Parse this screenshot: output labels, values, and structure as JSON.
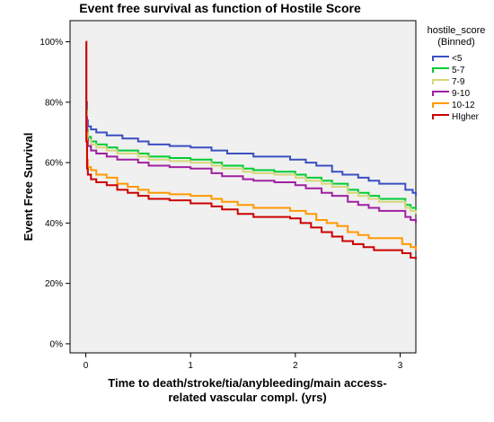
{
  "chart_data": {
    "type": "line",
    "title": "Event free survival as function of Hostile Score",
    "xlabel": [
      "Time to death/stroke/tia/anybleeding/main access-",
      "related vascular compl. (yrs)"
    ],
    "ylabel": "Event Free Survival",
    "xlim": [
      -0.15,
      3.15
    ],
    "ylim": [
      -0.03,
      1.07
    ],
    "xticks": [
      0,
      1,
      2,
      3
    ],
    "xtick_labels": [
      "0",
      "1",
      "2",
      "3"
    ],
    "yticks": [
      0,
      0.2,
      0.4,
      0.6,
      0.8,
      1.0
    ],
    "ytick_labels": [
      "0%",
      "20%",
      "40%",
      "60%",
      "80%",
      "100%"
    ],
    "grid": false,
    "plot_background": "#f0f0f0",
    "legend": {
      "title": [
        "hostile_score",
        "(Binned)"
      ],
      "placement": "outside-right"
    },
    "series": [
      {
        "name": "<5",
        "color": "#3b4fc0",
        "points": [
          [
            0,
            1.0
          ],
          [
            0.005,
            0.8
          ],
          [
            0.012,
            0.74
          ],
          [
            0.02,
            0.72
          ],
          [
            0.05,
            0.71
          ],
          [
            0.1,
            0.7
          ],
          [
            0.2,
            0.69
          ],
          [
            0.35,
            0.68
          ],
          [
            0.5,
            0.67
          ],
          [
            0.6,
            0.66
          ],
          [
            0.8,
            0.655
          ],
          [
            1.0,
            0.65
          ],
          [
            1.2,
            0.64
          ],
          [
            1.35,
            0.63
          ],
          [
            1.5,
            0.63
          ],
          [
            1.6,
            0.62
          ],
          [
            1.8,
            0.62
          ],
          [
            1.95,
            0.61
          ],
          [
            2.1,
            0.6
          ],
          [
            2.2,
            0.59
          ],
          [
            2.35,
            0.57
          ],
          [
            2.45,
            0.56
          ],
          [
            2.6,
            0.55
          ],
          [
            2.7,
            0.54
          ],
          [
            2.8,
            0.53
          ],
          [
            2.98,
            0.53
          ],
          [
            3.05,
            0.51
          ],
          [
            3.12,
            0.5
          ],
          [
            3.15,
            0.49
          ]
        ]
      },
      {
        "name": "5-7",
        "color": "#00cc33",
        "points": [
          [
            0,
            1.0
          ],
          [
            0.005,
            0.78
          ],
          [
            0.012,
            0.71
          ],
          [
            0.02,
            0.685
          ],
          [
            0.05,
            0.67
          ],
          [
            0.1,
            0.66
          ],
          [
            0.2,
            0.65
          ],
          [
            0.3,
            0.64
          ],
          [
            0.5,
            0.63
          ],
          [
            0.6,
            0.62
          ],
          [
            0.8,
            0.615
          ],
          [
            1.0,
            0.61
          ],
          [
            1.2,
            0.6
          ],
          [
            1.3,
            0.59
          ],
          [
            1.5,
            0.58
          ],
          [
            1.6,
            0.575
          ],
          [
            1.8,
            0.57
          ],
          [
            2.0,
            0.56
          ],
          [
            2.1,
            0.55
          ],
          [
            2.25,
            0.54
          ],
          [
            2.35,
            0.53
          ],
          [
            2.5,
            0.51
          ],
          [
            2.6,
            0.5
          ],
          [
            2.7,
            0.49
          ],
          [
            2.8,
            0.48
          ],
          [
            2.98,
            0.48
          ],
          [
            3.05,
            0.46
          ],
          [
            3.1,
            0.45
          ],
          [
            3.15,
            0.44
          ]
        ]
      },
      {
        "name": "7-9",
        "color": "#d6d67a",
        "points": [
          [
            0,
            1.0
          ],
          [
            0.005,
            0.77
          ],
          [
            0.012,
            0.7
          ],
          [
            0.02,
            0.675
          ],
          [
            0.05,
            0.66
          ],
          [
            0.1,
            0.65
          ],
          [
            0.2,
            0.64
          ],
          [
            0.3,
            0.63
          ],
          [
            0.5,
            0.62
          ],
          [
            0.6,
            0.61
          ],
          [
            0.8,
            0.605
          ],
          [
            1.0,
            0.6
          ],
          [
            1.2,
            0.59
          ],
          [
            1.3,
            0.58
          ],
          [
            1.5,
            0.57
          ],
          [
            1.6,
            0.565
          ],
          [
            1.8,
            0.56
          ],
          [
            2.0,
            0.55
          ],
          [
            2.1,
            0.54
          ],
          [
            2.25,
            0.53
          ],
          [
            2.35,
            0.52
          ],
          [
            2.5,
            0.5
          ],
          [
            2.6,
            0.49
          ],
          [
            2.7,
            0.48
          ],
          [
            2.8,
            0.47
          ],
          [
            2.98,
            0.47
          ],
          [
            3.05,
            0.45
          ],
          [
            3.1,
            0.44
          ],
          [
            3.15,
            0.43
          ]
        ]
      },
      {
        "name": "9-10",
        "color": "#a020a0",
        "points": [
          [
            0,
            1.0
          ],
          [
            0.005,
            0.75
          ],
          [
            0.012,
            0.68
          ],
          [
            0.02,
            0.655
          ],
          [
            0.05,
            0.64
          ],
          [
            0.1,
            0.63
          ],
          [
            0.2,
            0.62
          ],
          [
            0.3,
            0.61
          ],
          [
            0.5,
            0.6
          ],
          [
            0.6,
            0.59
          ],
          [
            0.8,
            0.585
          ],
          [
            1.0,
            0.58
          ],
          [
            1.2,
            0.565
          ],
          [
            1.3,
            0.555
          ],
          [
            1.5,
            0.545
          ],
          [
            1.6,
            0.54
          ],
          [
            1.8,
            0.535
          ],
          [
            2.0,
            0.525
          ],
          [
            2.1,
            0.515
          ],
          [
            2.25,
            0.5
          ],
          [
            2.35,
            0.49
          ],
          [
            2.5,
            0.47
          ],
          [
            2.6,
            0.46
          ],
          [
            2.7,
            0.45
          ],
          [
            2.8,
            0.44
          ],
          [
            2.98,
            0.44
          ],
          [
            3.05,
            0.42
          ],
          [
            3.1,
            0.41
          ],
          [
            3.15,
            0.4
          ]
        ]
      },
      {
        "name": "10-12",
        "color": "#ff9900",
        "points": [
          [
            0,
            1.0
          ],
          [
            0.005,
            0.7
          ],
          [
            0.012,
            0.61
          ],
          [
            0.02,
            0.585
          ],
          [
            0.05,
            0.575
          ],
          [
            0.1,
            0.56
          ],
          [
            0.2,
            0.55
          ],
          [
            0.3,
            0.53
          ],
          [
            0.4,
            0.52
          ],
          [
            0.5,
            0.51
          ],
          [
            0.6,
            0.5
          ],
          [
            0.8,
            0.495
          ],
          [
            1.0,
            0.49
          ],
          [
            1.2,
            0.48
          ],
          [
            1.3,
            0.47
          ],
          [
            1.45,
            0.46
          ],
          [
            1.6,
            0.45
          ],
          [
            1.8,
            0.45
          ],
          [
            1.95,
            0.44
          ],
          [
            2.1,
            0.43
          ],
          [
            2.2,
            0.41
          ],
          [
            2.3,
            0.4
          ],
          [
            2.4,
            0.39
          ],
          [
            2.5,
            0.37
          ],
          [
            2.6,
            0.36
          ],
          [
            2.7,
            0.35
          ],
          [
            2.98,
            0.35
          ],
          [
            3.02,
            0.33
          ],
          [
            3.1,
            0.32
          ],
          [
            3.15,
            0.31
          ]
        ]
      },
      {
        "name": "HIgher",
        "color": "#cc0000",
        "points": [
          [
            0,
            1.0
          ],
          [
            0.005,
            0.67
          ],
          [
            0.012,
            0.58
          ],
          [
            0.02,
            0.56
          ],
          [
            0.05,
            0.545
          ],
          [
            0.1,
            0.535
          ],
          [
            0.2,
            0.525
          ],
          [
            0.3,
            0.51
          ],
          [
            0.4,
            0.5
          ],
          [
            0.5,
            0.49
          ],
          [
            0.6,
            0.48
          ],
          [
            0.8,
            0.475
          ],
          [
            1.0,
            0.465
          ],
          [
            1.2,
            0.455
          ],
          [
            1.3,
            0.445
          ],
          [
            1.45,
            0.43
          ],
          [
            1.6,
            0.42
          ],
          [
            1.8,
            0.42
          ],
          [
            1.95,
            0.415
          ],
          [
            2.05,
            0.4
          ],
          [
            2.15,
            0.385
          ],
          [
            2.25,
            0.37
          ],
          [
            2.35,
            0.355
          ],
          [
            2.45,
            0.34
          ],
          [
            2.55,
            0.33
          ],
          [
            2.65,
            0.32
          ],
          [
            2.75,
            0.31
          ],
          [
            2.98,
            0.31
          ],
          [
            3.02,
            0.3
          ],
          [
            3.1,
            0.285
          ],
          [
            3.15,
            0.28
          ]
        ]
      }
    ]
  }
}
